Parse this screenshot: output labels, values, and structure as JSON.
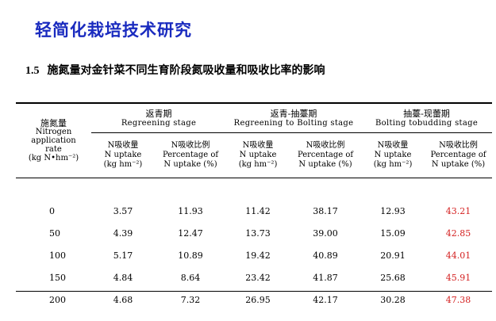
{
  "page": {
    "title": "轻简化栽培技术研究",
    "subtitle_number": "1.5",
    "subtitle_text": "施氮量对金针菜不同生育阶段氮吸收量和吸收比率的影响"
  },
  "table": {
    "param_header": {
      "line1": "施氮量",
      "line2": "Nitrogen",
      "line3": "application",
      "line4": "rate",
      "line5": "(kg N•hm⁻²)"
    },
    "stages": [
      {
        "zh": "返青期",
        "en": "Regreening  stage"
      },
      {
        "zh": "返青-抽薹期",
        "en": "Regreening to Bolting stage"
      },
      {
        "zh": "抽薹-现蕾期",
        "en": "Bolting tobudding  stage"
      }
    ],
    "sub_headers": {
      "uptake": {
        "line1": "N吸收量",
        "line2": "N uptake",
        "line3": "(kg hm⁻²)"
      },
      "ratio": {
        "line1": "N吸收比例",
        "line2": "Percentage  of",
        "line3": "N uptake  (%)"
      }
    },
    "rows": [
      {
        "rate": "0",
        "values": [
          "3.57",
          "11.93",
          "11.42",
          "38.17",
          "12.93",
          "43.21"
        ]
      },
      {
        "rate": "50",
        "values": [
          "4.39",
          "12.47",
          "13.73",
          "39.00",
          "15.09",
          "42.85"
        ]
      },
      {
        "rate": "100",
        "values": [
          "5.17",
          "10.89",
          "19.42",
          "40.89",
          "20.91",
          "44.01"
        ]
      },
      {
        "rate": "150",
        "values": [
          "4.84",
          "8.64",
          "23.42",
          "41.87",
          "25.68",
          "45.91"
        ]
      },
      {
        "rate": "200",
        "values": [
          "4.68",
          "7.32",
          "26.95",
          "42.17",
          "30.28",
          "47.38"
        ]
      }
    ],
    "highlight_color": "#d42020"
  }
}
